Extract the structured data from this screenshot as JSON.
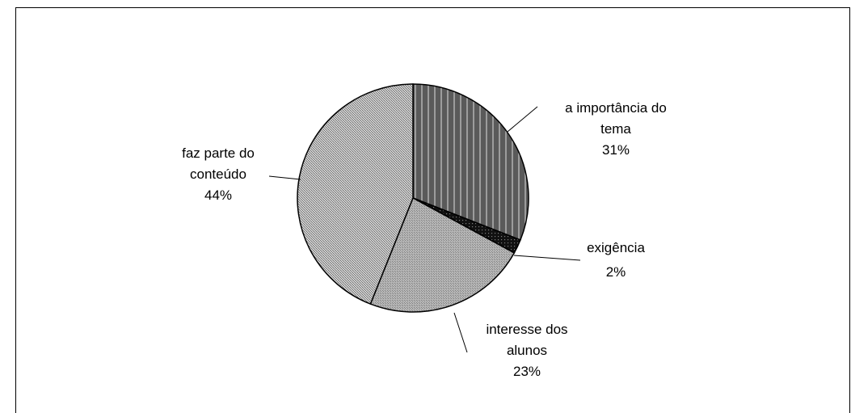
{
  "chart_data": {
    "type": "pie",
    "categories": [
      "a importância do tema",
      "exigência",
      "interesse dos alunos",
      "faz parte do conteúdo"
    ],
    "values": [
      31,
      2,
      23,
      44
    ],
    "value_labels": [
      "31%",
      "2%",
      "23%",
      "44%"
    ],
    "colors": [
      "#5a5a5a",
      "#111111",
      "#b8b8b8",
      "#d8d8d8"
    ]
  }
}
